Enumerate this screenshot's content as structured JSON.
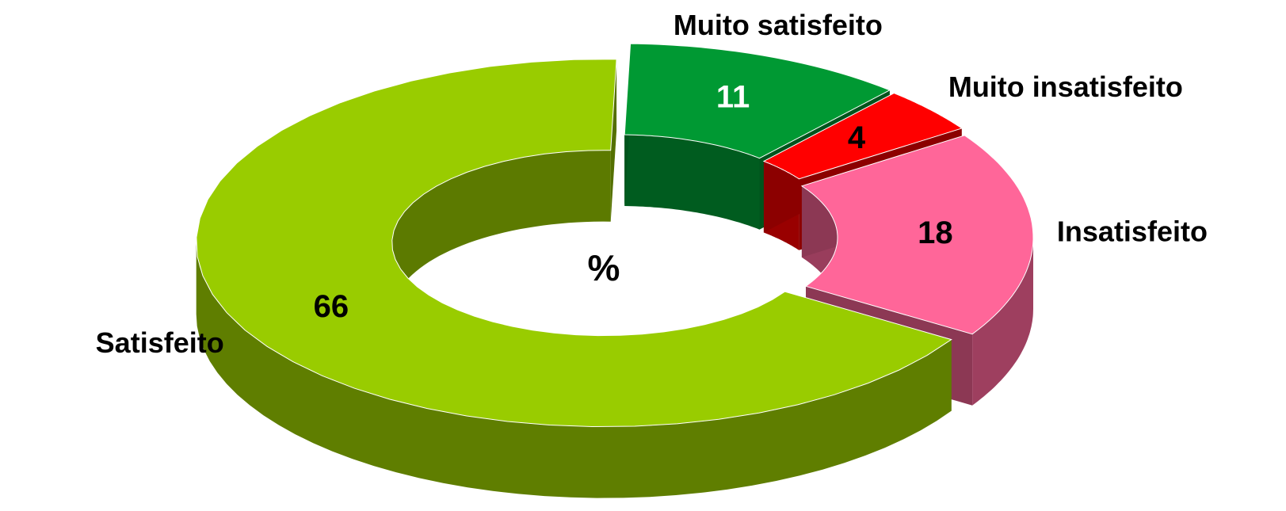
{
  "chart_data": {
    "type": "donut3d",
    "center_label": "%",
    "categories": [
      "Muito satisfeito",
      "Muito insatisfeito",
      "Insatisfeito",
      "Satisfeito"
    ],
    "values": [
      11,
      4,
      18,
      66
    ],
    "colors": [
      "#009933",
      "#ff0000",
      "#ff6699",
      "#99cc00"
    ],
    "label_colors": [
      "#ffffff",
      "#000000",
      "#000000",
      "#000000"
    ]
  }
}
